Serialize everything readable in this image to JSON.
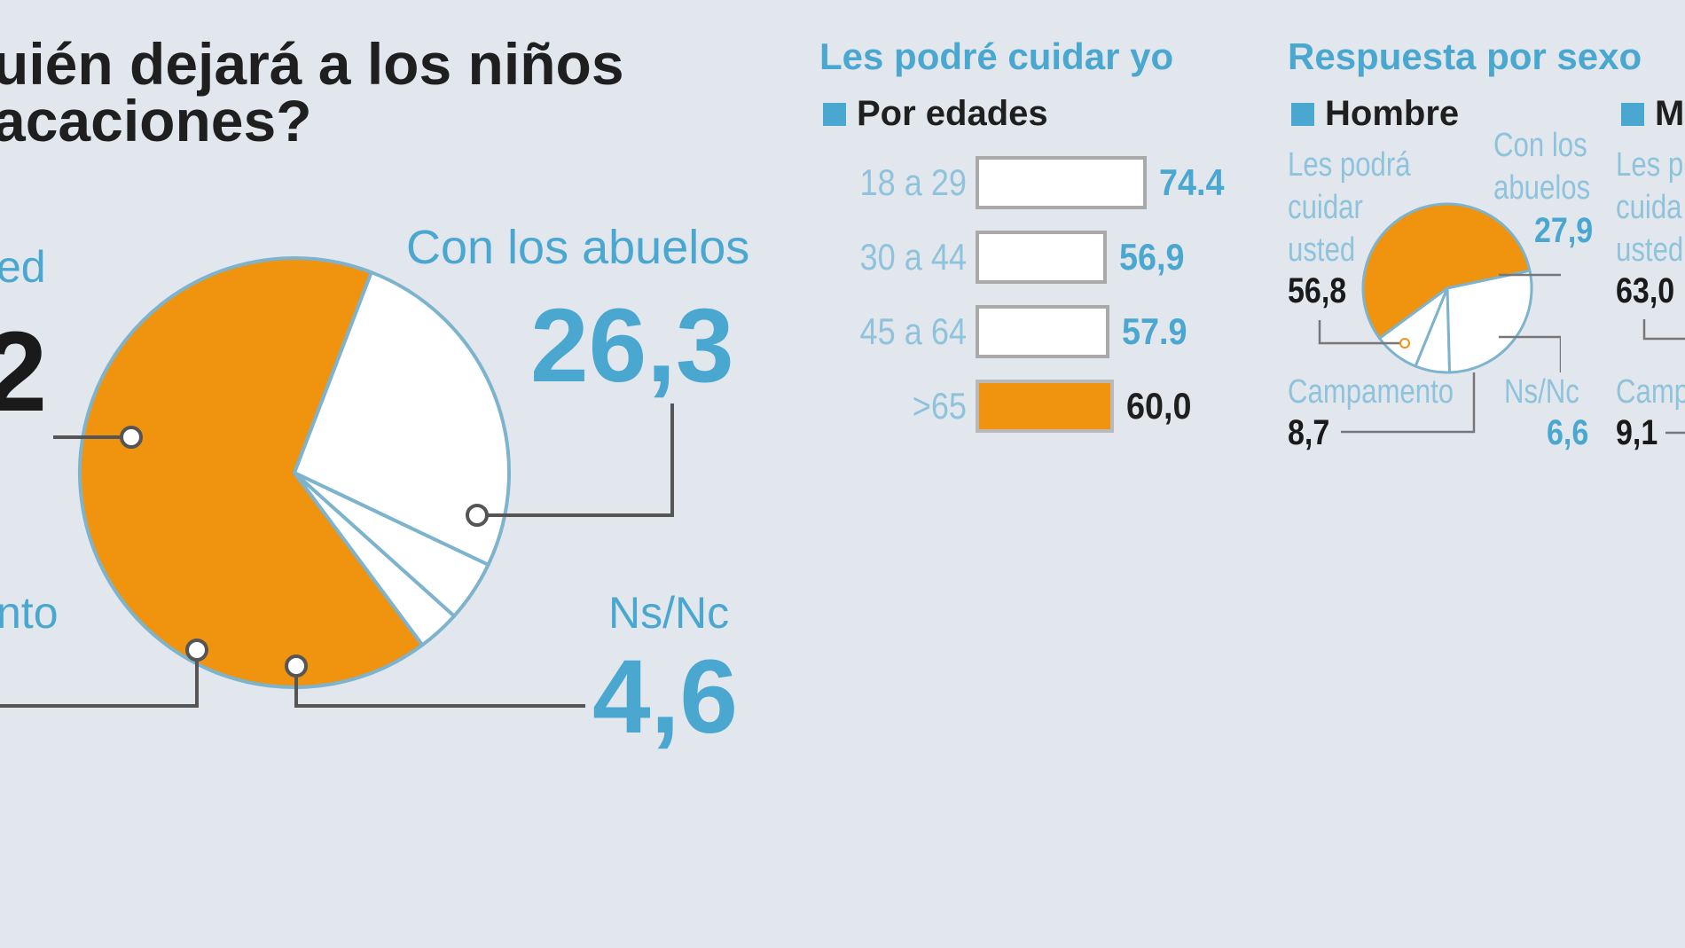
{
  "main_title": {
    "line1": "uién dejará a los niños",
    "line2": "acaciones?"
  },
  "main_pie": {
    "labels": {
      "usted_partial": "ed",
      "usted_value_partial": "2",
      "abuelos": "Con los abuelos",
      "abuelos_value": "26,3",
      "campamento_partial": "nto",
      "nsnc": "Ns/Nc",
      "nsnc_value": "4,6"
    }
  },
  "age_section": {
    "title": "Les podré cuidar yo",
    "legend": "Por edades"
  },
  "sex_section": {
    "title": "Respuesta por sexo",
    "hombre_legend": "Hombre",
    "mujer_legend_partial": "M",
    "hombre": {
      "usted_label": [
        "Les podrá",
        "cuidar",
        "usted"
      ],
      "usted_value": "56,8",
      "abuelos_label": [
        "Con los",
        "abuelos"
      ],
      "abuelos_value": "27,9",
      "campamento_label": "Campamento",
      "campamento_value": "8,7",
      "nsnc_label": "Ns/Nc",
      "nsnc_value": "6,6"
    },
    "mujer": {
      "usted_label_partial": [
        "Les p",
        "cuida",
        "usted"
      ],
      "usted_value": "63,0",
      "campamento_label_partial": "Camp",
      "campamento_value": "9,1"
    }
  },
  "colors": {
    "orange": "#f0930f",
    "blue": "#4aa7cf",
    "light_blue": "#8fc3dc",
    "outline": "#7db3cc",
    "background": "#e2e7ee"
  },
  "chart_data": [
    {
      "type": "pie",
      "start_angle_deg": 69,
      "slices": [
        {
          "label": "Les podrá cuidar usted",
          "value": 66.2,
          "color": "#f0930f"
        },
        {
          "label": "Campamento",
          "value": 3.2,
          "color": "#ffffff"
        },
        {
          "label": "Ns/Nc",
          "value": 4.6,
          "color": "#ffffff"
        },
        {
          "label": "Con los abuelos",
          "value": 26.3,
          "color": "#ffffff"
        }
      ]
    },
    {
      "type": "bar",
      "title": "Les podré cuidar yo",
      "legend": "Por edades",
      "categories": [
        "18 a 29",
        "30 a 44",
        "45 a 64",
        ">65"
      ],
      "values": [
        74.4,
        56.9,
        57.9,
        60.0
      ],
      "value_labels": [
        "74.4",
        "56,9",
        "57.9",
        "60,0"
      ],
      "highlight_index": 3,
      "xlim": [
        0,
        100
      ]
    },
    {
      "type": "pie",
      "legend": "Hombre",
      "start_angle_deg": 12,
      "slices": [
        {
          "label": "Les podrá cuidar usted",
          "value": 56.8,
          "color": "#f0930f"
        },
        {
          "label": "Campamento",
          "value": 8.7,
          "color": "#ffffff"
        },
        {
          "label": "Ns/Nc",
          "value": 6.6,
          "color": "#ffffff"
        },
        {
          "label": "Con los abuelos",
          "value": 27.9,
          "color": "#ffffff"
        }
      ]
    }
  ]
}
